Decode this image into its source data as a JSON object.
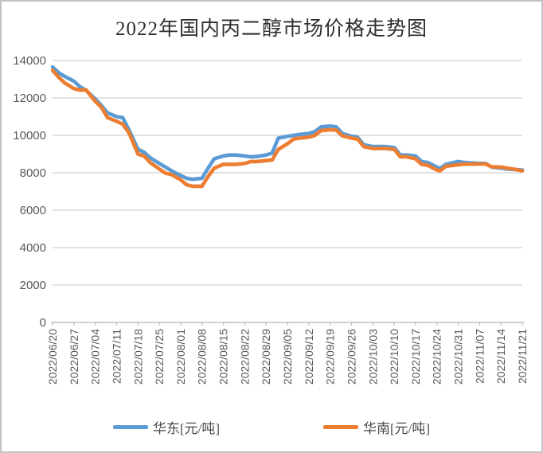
{
  "window": {
    "background": "#ffffff",
    "frame_border_color": "#c2c2c2"
  },
  "chart_data": {
    "type": "line",
    "title": "2022年国内丙二醇市场价格走势图",
    "xlabel": "",
    "ylabel": "",
    "ylim": [
      0,
      14000
    ],
    "y_ticks": [
      0,
      2000,
      4000,
      6000,
      8000,
      10000,
      12000,
      14000
    ],
    "grid": true,
    "gridline_color": "#d9d9d9",
    "axis_line_color": "#bfbfbf",
    "tick_label_color": "#595959",
    "legend_position": "bottom",
    "x_tick_labels": [
      "2022/06/20",
      "2022/06/27",
      "2022/07/04",
      "2022/07/11",
      "2022/07/18",
      "2022/07/25",
      "2022/08/01",
      "2022/08/08",
      "2022/08/15",
      "2022/08/22",
      "2022/08/29",
      "2022/09/05",
      "2022/09/12",
      "2022/09/19",
      "2022/09/26",
      "2022/10/03",
      "2022/10/10",
      "2022/10/17",
      "2022/10/24",
      "2022/10/31",
      "2022/11/07",
      "2022/11/14",
      "2022/11/21"
    ],
    "x_days_per_tick": 7,
    "x_days": [
      0,
      2,
      4,
      7,
      9,
      11,
      14,
      16,
      18,
      21,
      23,
      25,
      28,
      30,
      32,
      35,
      37,
      39,
      42,
      44,
      46,
      49,
      51,
      53,
      56,
      58,
      60,
      63,
      65,
      67,
      70,
      72,
      74,
      77,
      79,
      81,
      84,
      86,
      88,
      91,
      93,
      95,
      98,
      100,
      102,
      105,
      109,
      112,
      114,
      116,
      119,
      121,
      123,
      126,
      127,
      129,
      133,
      135,
      140,
      142,
      144,
      147,
      149,
      151,
      154
    ],
    "series": [
      {
        "name": "华东[元/吨]",
        "color": "#5B9BD5",
        "values": [
          13650,
          13350,
          13150,
          12900,
          12600,
          12400,
          11950,
          11600,
          11200,
          11000,
          10950,
          10300,
          9250,
          9100,
          8800,
          8500,
          8300,
          8100,
          7850,
          7700,
          7650,
          7700,
          8250,
          8750,
          8900,
          8950,
          8950,
          8900,
          8850,
          8870,
          8950,
          9050,
          9850,
          9950,
          10000,
          10050,
          10100,
          10200,
          10450,
          10500,
          10450,
          10100,
          9950,
          9900,
          9500,
          9400,
          9400,
          9350,
          8950,
          8950,
          8900,
          8600,
          8550,
          8300,
          8230,
          8450,
          8600,
          8550,
          8500,
          8500,
          8300,
          8250,
          8200,
          8180,
          8150
        ]
      },
      {
        "name": "华南[元/吨]",
        "color": "#ED7D31",
        "values": [
          13480,
          13100,
          12800,
          12500,
          12420,
          12430,
          11820,
          11500,
          10950,
          10750,
          10600,
          10150,
          9000,
          8900,
          8550,
          8200,
          7980,
          7900,
          7620,
          7350,
          7280,
          7280,
          7800,
          8250,
          8450,
          8450,
          8450,
          8500,
          8600,
          8600,
          8650,
          8680,
          9250,
          9550,
          9800,
          9850,
          9900,
          10000,
          10250,
          10300,
          10280,
          9980,
          9850,
          9800,
          9400,
          9300,
          9300,
          9250,
          8850,
          8850,
          8750,
          8450,
          8400,
          8150,
          8100,
          8350,
          8430,
          8460,
          8470,
          8470,
          8320,
          8300,
          8250,
          8200,
          8100
        ]
      }
    ]
  }
}
